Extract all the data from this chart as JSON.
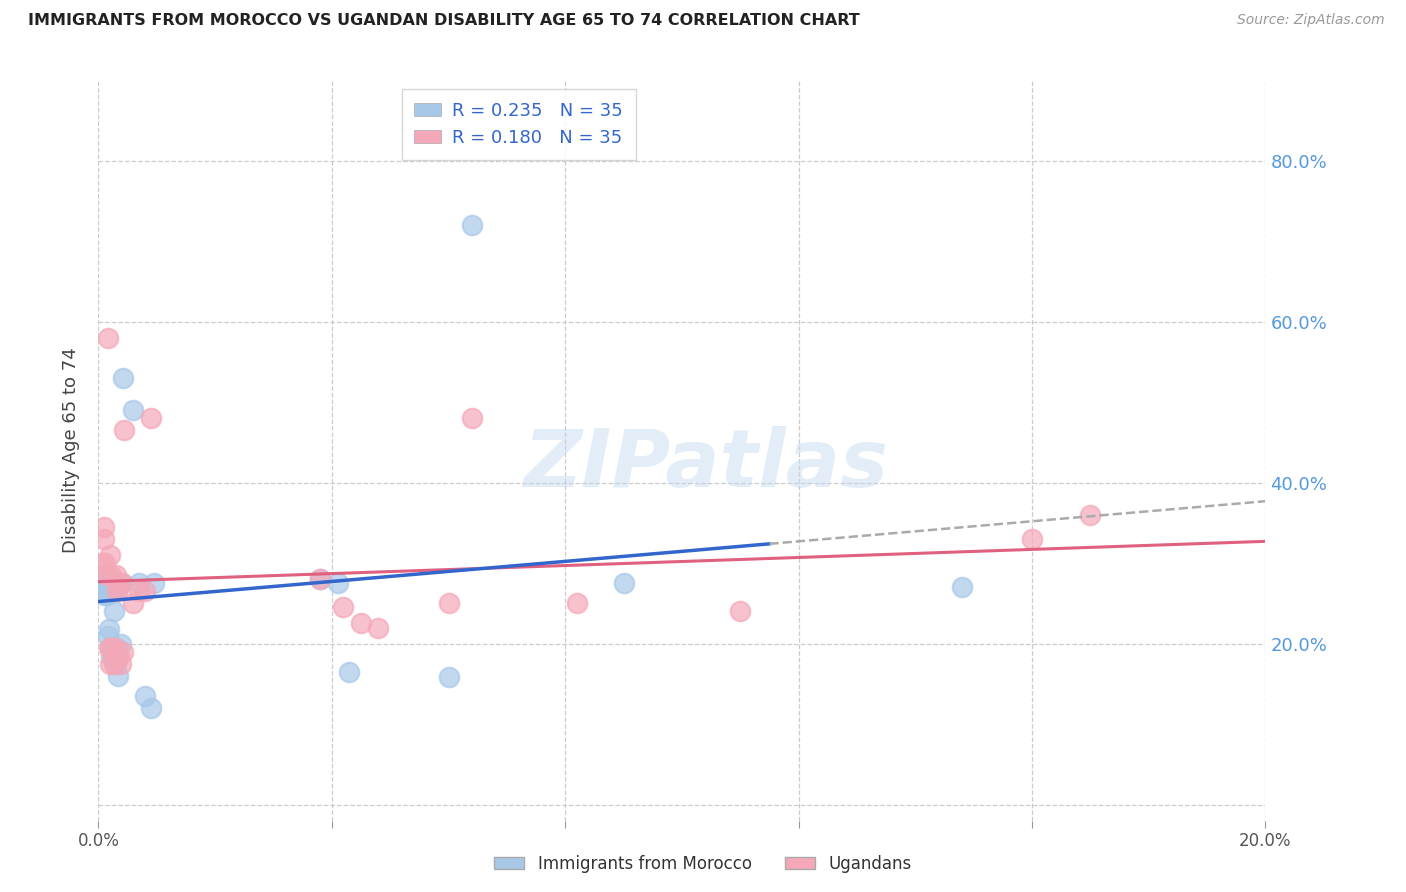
{
  "title": "IMMIGRANTS FROM MOROCCO VS UGANDAN DISABILITY AGE 65 TO 74 CORRELATION CHART",
  "source": "Source: ZipAtlas.com",
  "ylabel": "Disability Age 65 to 74",
  "xlim": [
    0.0,
    0.2
  ],
  "ylim": [
    -0.02,
    0.9
  ],
  "R_morocco": 0.235,
  "N_morocco": 35,
  "R_uganda": 0.18,
  "N_uganda": 35,
  "morocco_color": "#a8c8e8",
  "uganda_color": "#f4a8b8",
  "morocco_line_color": "#3366cc",
  "uganda_line_color": "#e06080",
  "morocco_x": [
    0.0008,
    0.0008,
    0.001,
    0.001,
    0.0012,
    0.0014,
    0.0014,
    0.0016,
    0.0018,
    0.0018,
    0.002,
    0.0022,
    0.0024,
    0.0024,
    0.0026,
    0.0028,
    0.003,
    0.0032,
    0.0034,
    0.0034,
    0.0038,
    0.004,
    0.0042,
    0.006,
    0.007,
    0.008,
    0.009,
    0.0095,
    0.038,
    0.041,
    0.043,
    0.06,
    0.064,
    0.09,
    0.148
  ],
  "morocco_y": [
    0.28,
    0.27,
    0.285,
    0.26,
    0.275,
    0.268,
    0.26,
    0.21,
    0.218,
    0.27,
    0.195,
    0.185,
    0.28,
    0.265,
    0.24,
    0.185,
    0.175,
    0.195,
    0.16,
    0.27,
    0.2,
    0.275,
    0.53,
    0.49,
    0.275,
    0.135,
    0.12,
    0.275,
    0.28,
    0.275,
    0.165,
    0.158,
    0.72,
    0.275,
    0.27
  ],
  "uganda_x": [
    0.0008,
    0.001,
    0.001,
    0.0012,
    0.0014,
    0.0016,
    0.0018,
    0.002,
    0.002,
    0.0022,
    0.0024,
    0.0026,
    0.0028,
    0.003,
    0.0032,
    0.0034,
    0.0036,
    0.0038,
    0.004,
    0.0042,
    0.0044,
    0.006,
    0.007,
    0.008,
    0.009,
    0.038,
    0.042,
    0.045,
    0.048,
    0.06,
    0.064,
    0.082,
    0.11,
    0.16,
    0.17
  ],
  "uganda_y": [
    0.3,
    0.33,
    0.345,
    0.3,
    0.285,
    0.58,
    0.195,
    0.175,
    0.31,
    0.285,
    0.195,
    0.175,
    0.195,
    0.285,
    0.265,
    0.27,
    0.185,
    0.175,
    0.275,
    0.19,
    0.465,
    0.25,
    0.265,
    0.265,
    0.48,
    0.28,
    0.245,
    0.225,
    0.22,
    0.25,
    0.48,
    0.25,
    0.24,
    0.33,
    0.36
  ],
  "legend_labels": [
    "Immigrants from Morocco",
    "Ugandans"
  ],
  "background_color": "#ffffff",
  "grid_color": "#cccccc",
  "watermark": "ZIPatlas"
}
